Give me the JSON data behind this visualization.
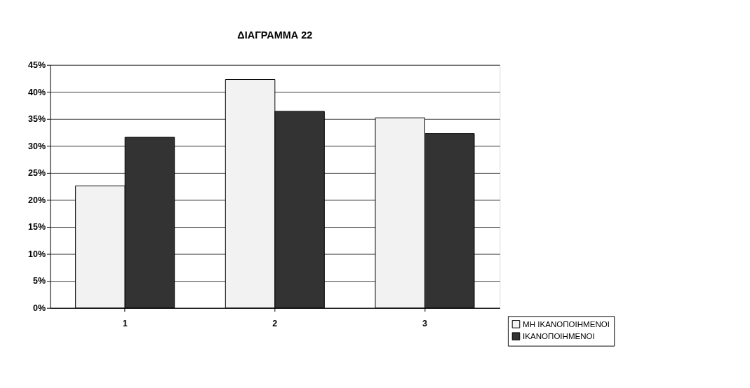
{
  "chart_data": {
    "type": "bar",
    "title": "ΔΙΑΓΡΑΜΜΑ  22",
    "categories": [
      "1",
      "2",
      "3"
    ],
    "series": [
      {
        "name": "ΜΗ ΙΚΑΝΟΠΟΙΗΜΕΝΟΙ",
        "color": "#f2f2f2",
        "values": [
          22.6,
          42.3,
          35.2
        ]
      },
      {
        "name": "ΙΚΑΝΟΠΟΙΗΜΕΝΟΙ",
        "color": "#333333",
        "values": [
          31.6,
          36.4,
          32.3
        ]
      }
    ],
    "ylim": [
      0,
      45
    ],
    "yticks": [
      {
        "value": 0,
        "label": "0%"
      },
      {
        "value": 5,
        "label": "5%"
      },
      {
        "value": 10,
        "label": "10%"
      },
      {
        "value": 15,
        "label": "15%"
      },
      {
        "value": 20,
        "label": "20%"
      },
      {
        "value": 25,
        "label": "25%"
      },
      {
        "value": 30,
        "label": "30%"
      },
      {
        "value": 35,
        "label": "35%"
      },
      {
        "value": 40,
        "label": "40%"
      },
      {
        "value": 45,
        "label": "45%"
      }
    ],
    "grid": "y",
    "legend": "bottom right"
  }
}
